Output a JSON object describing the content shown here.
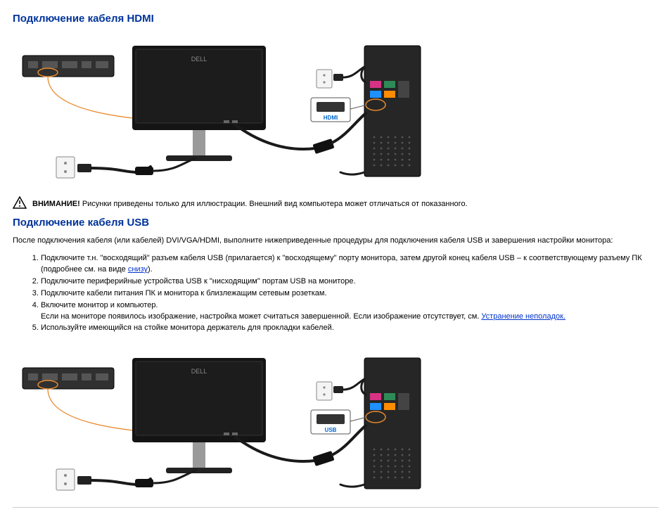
{
  "section1": {
    "title": "Подключение кабеля HDMI",
    "diagram": {
      "connector_label": "HDMI",
      "connector_label_color": "#0066cc",
      "monitor_brand": "DELL",
      "highlight_color": "#e88b2e",
      "cable_color": "#1a1a1a",
      "monitor_color": "#151414",
      "panel_color": "#303030",
      "tower_color": "#262626",
      "port_colors": [
        "#d63384",
        "#2e8b57",
        "#1e90ff",
        "#ff8c00"
      ]
    }
  },
  "caution": {
    "label": "ВНИМАНИЕ!",
    "text": "Рисунки приведены только для иллюстрации. Внешний вид компьютера может отличаться от показанного."
  },
  "section2": {
    "title": "Подключение кабеля USB",
    "intro_before_links": "После подключения кабеля (или кабелей) DVI/VGA/HDMI, выполните нижеприведенные процедуры для подключения кабеля USB и завершения настройки монитора:",
    "steps": [
      {
        "pre": "Подключите т.н. \"восходящий\" разъем кабеля USB (прилагается) к \"восходящему\" порту монитора, затем другой конец кабеля USB – к соответствующему разъему ПК (подробнее см. на виде ",
        "link": "снизу",
        "post": ")."
      },
      {
        "pre": "Подключите периферийные устройства USB к \"нисходящим\" портам USB на мониторе."
      },
      {
        "pre": "Подключите кабели питания ПК и монитора к близлежащим сетевым розеткам."
      },
      {
        "pre": "Включите монитор и компьютер.\nЕсли на мониторе появилось изображение, настройка может считаться завершенной. Если изображение отсутствует, см. ",
        "link": "Устранение неполадок.",
        "post": ""
      },
      {
        "pre": "Используйте имеющийся на стойке монитора держатель для прокладки кабелей."
      }
    ],
    "diagram": {
      "connector_label": "USB",
      "connector_label_color": "#0066cc",
      "monitor_brand": "DELL",
      "highlight_color": "#e88b2e",
      "cable_color": "#1a1a1a",
      "monitor_color": "#151414",
      "panel_color": "#303030",
      "tower_color": "#262626",
      "port_colors": [
        "#d63384",
        "#2e8b57",
        "#1e90ff",
        "#ff8c00"
      ]
    }
  }
}
